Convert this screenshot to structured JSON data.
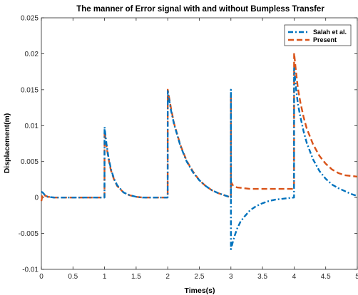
{
  "chart_data": {
    "type": "line",
    "title": "The manner of Error signal with and without Bumpless Transfer",
    "xlabel": "Times(s)",
    "ylabel": "Displacement(m)",
    "xlim": [
      0,
      5
    ],
    "ylim": [
      -0.01,
      0.025
    ],
    "xticks": [
      0,
      0.5,
      1,
      1.5,
      2,
      2.5,
      3,
      3.5,
      4,
      4.5,
      5
    ],
    "xtick_labels": [
      "0",
      "0.5",
      "1",
      "1.5",
      "2",
      "2.5",
      "3",
      "3.5",
      "4",
      "4.5",
      "5"
    ],
    "yticks": [
      -0.01,
      -0.005,
      0,
      0.005,
      0.01,
      0.015,
      0.02,
      0.025
    ],
    "ytick_labels": [
      "-0.01",
      "-0.005",
      "0",
      "0.005",
      "0.01",
      "0.015",
      "0.02",
      "0.025"
    ],
    "grid": false,
    "legend_position": "top-right",
    "series": [
      {
        "name": "Salah et al.",
        "color": "#0072BD",
        "style": "dash-dot",
        "x": [
          0,
          0.02,
          0.05,
          0.1,
          0.2,
          0.3,
          0.5,
          0.8,
          0.999,
          1.0,
          1.03,
          1.06,
          1.1,
          1.15,
          1.2,
          1.3,
          1.4,
          1.5,
          1.6,
          1.8,
          1.999,
          2.0,
          2.05,
          2.1,
          2.2,
          2.3,
          2.4,
          2.5,
          2.6,
          2.7,
          2.8,
          2.9,
          2.999,
          3.0,
          3.0001,
          3.03,
          3.06,
          3.1,
          3.15,
          3.2,
          3.3,
          3.4,
          3.5,
          3.6,
          3.7,
          3.8,
          3.9,
          3.999,
          4.0,
          4.03,
          4.06,
          4.1,
          4.15,
          4.2,
          4.3,
          4.4,
          4.5,
          4.6,
          4.7,
          4.8,
          4.9,
          5.0
        ],
        "y": [
          0.0008,
          0.0007,
          0.0004,
          0.0001,
          0.0,
          0.0,
          0.0,
          0.0,
          0.0,
          0.0098,
          0.0075,
          0.0057,
          0.004,
          0.0026,
          0.0017,
          0.0007,
          0.0003,
          0.0001,
          0.0,
          0.0,
          0.0,
          0.0148,
          0.0122,
          0.0102,
          0.0072,
          0.005,
          0.0035,
          0.0024,
          0.0016,
          0.001,
          0.0006,
          0.0003,
          0.0,
          0.015,
          -0.0072,
          -0.0062,
          -0.0053,
          -0.0043,
          -0.0034,
          -0.0028,
          -0.0018,
          -0.0012,
          -0.0008,
          -0.0005,
          -0.0003,
          -0.0002,
          -0.0001,
          0.0,
          0.018,
          0.0152,
          0.013,
          0.0112,
          0.0092,
          0.0076,
          0.0053,
          0.0037,
          0.0026,
          0.0018,
          0.0013,
          0.0009,
          0.0005,
          0.0002
        ]
      },
      {
        "name": "Present",
        "color": "#D95319",
        "style": "dashed",
        "x": [
          0,
          0.02,
          0.05,
          0.1,
          0.2,
          0.3,
          0.5,
          0.8,
          0.999,
          1.0,
          1.03,
          1.06,
          1.1,
          1.15,
          1.2,
          1.3,
          1.4,
          1.5,
          1.6,
          1.8,
          1.999,
          2.0,
          2.05,
          2.1,
          2.2,
          2.3,
          2.4,
          2.5,
          2.6,
          2.7,
          2.8,
          2.9,
          2.999,
          3.0,
          3.0001,
          3.03,
          3.06,
          3.1,
          3.2,
          3.3,
          3.5,
          3.7,
          3.9,
          3.999,
          4.0,
          4.03,
          4.06,
          4.1,
          4.15,
          4.2,
          4.3,
          4.4,
          4.5,
          4.6,
          4.7,
          4.8,
          4.9,
          5.0
        ],
        "y": [
          -0.0005,
          0.0004,
          0.0003,
          0.0001,
          0.0,
          0.0,
          0.0,
          0.0,
          0.0,
          0.0092,
          0.0072,
          0.0055,
          0.0038,
          0.0025,
          0.0016,
          0.0007,
          0.0003,
          0.0001,
          0.0,
          0.0,
          0.0,
          0.015,
          0.0125,
          0.0103,
          0.0073,
          0.0051,
          0.0036,
          0.0024,
          0.0016,
          0.001,
          0.0006,
          0.0003,
          0.0,
          0.0143,
          0.0022,
          0.0017,
          0.0015,
          0.0014,
          0.0013,
          0.0012,
          0.0012,
          0.0012,
          0.0012,
          0.0012,
          0.0201,
          0.0175,
          0.0152,
          0.0132,
          0.0112,
          0.0096,
          0.0074,
          0.0058,
          0.0047,
          0.0039,
          0.0034,
          0.0031,
          0.003,
          0.0029
        ]
      }
    ]
  }
}
